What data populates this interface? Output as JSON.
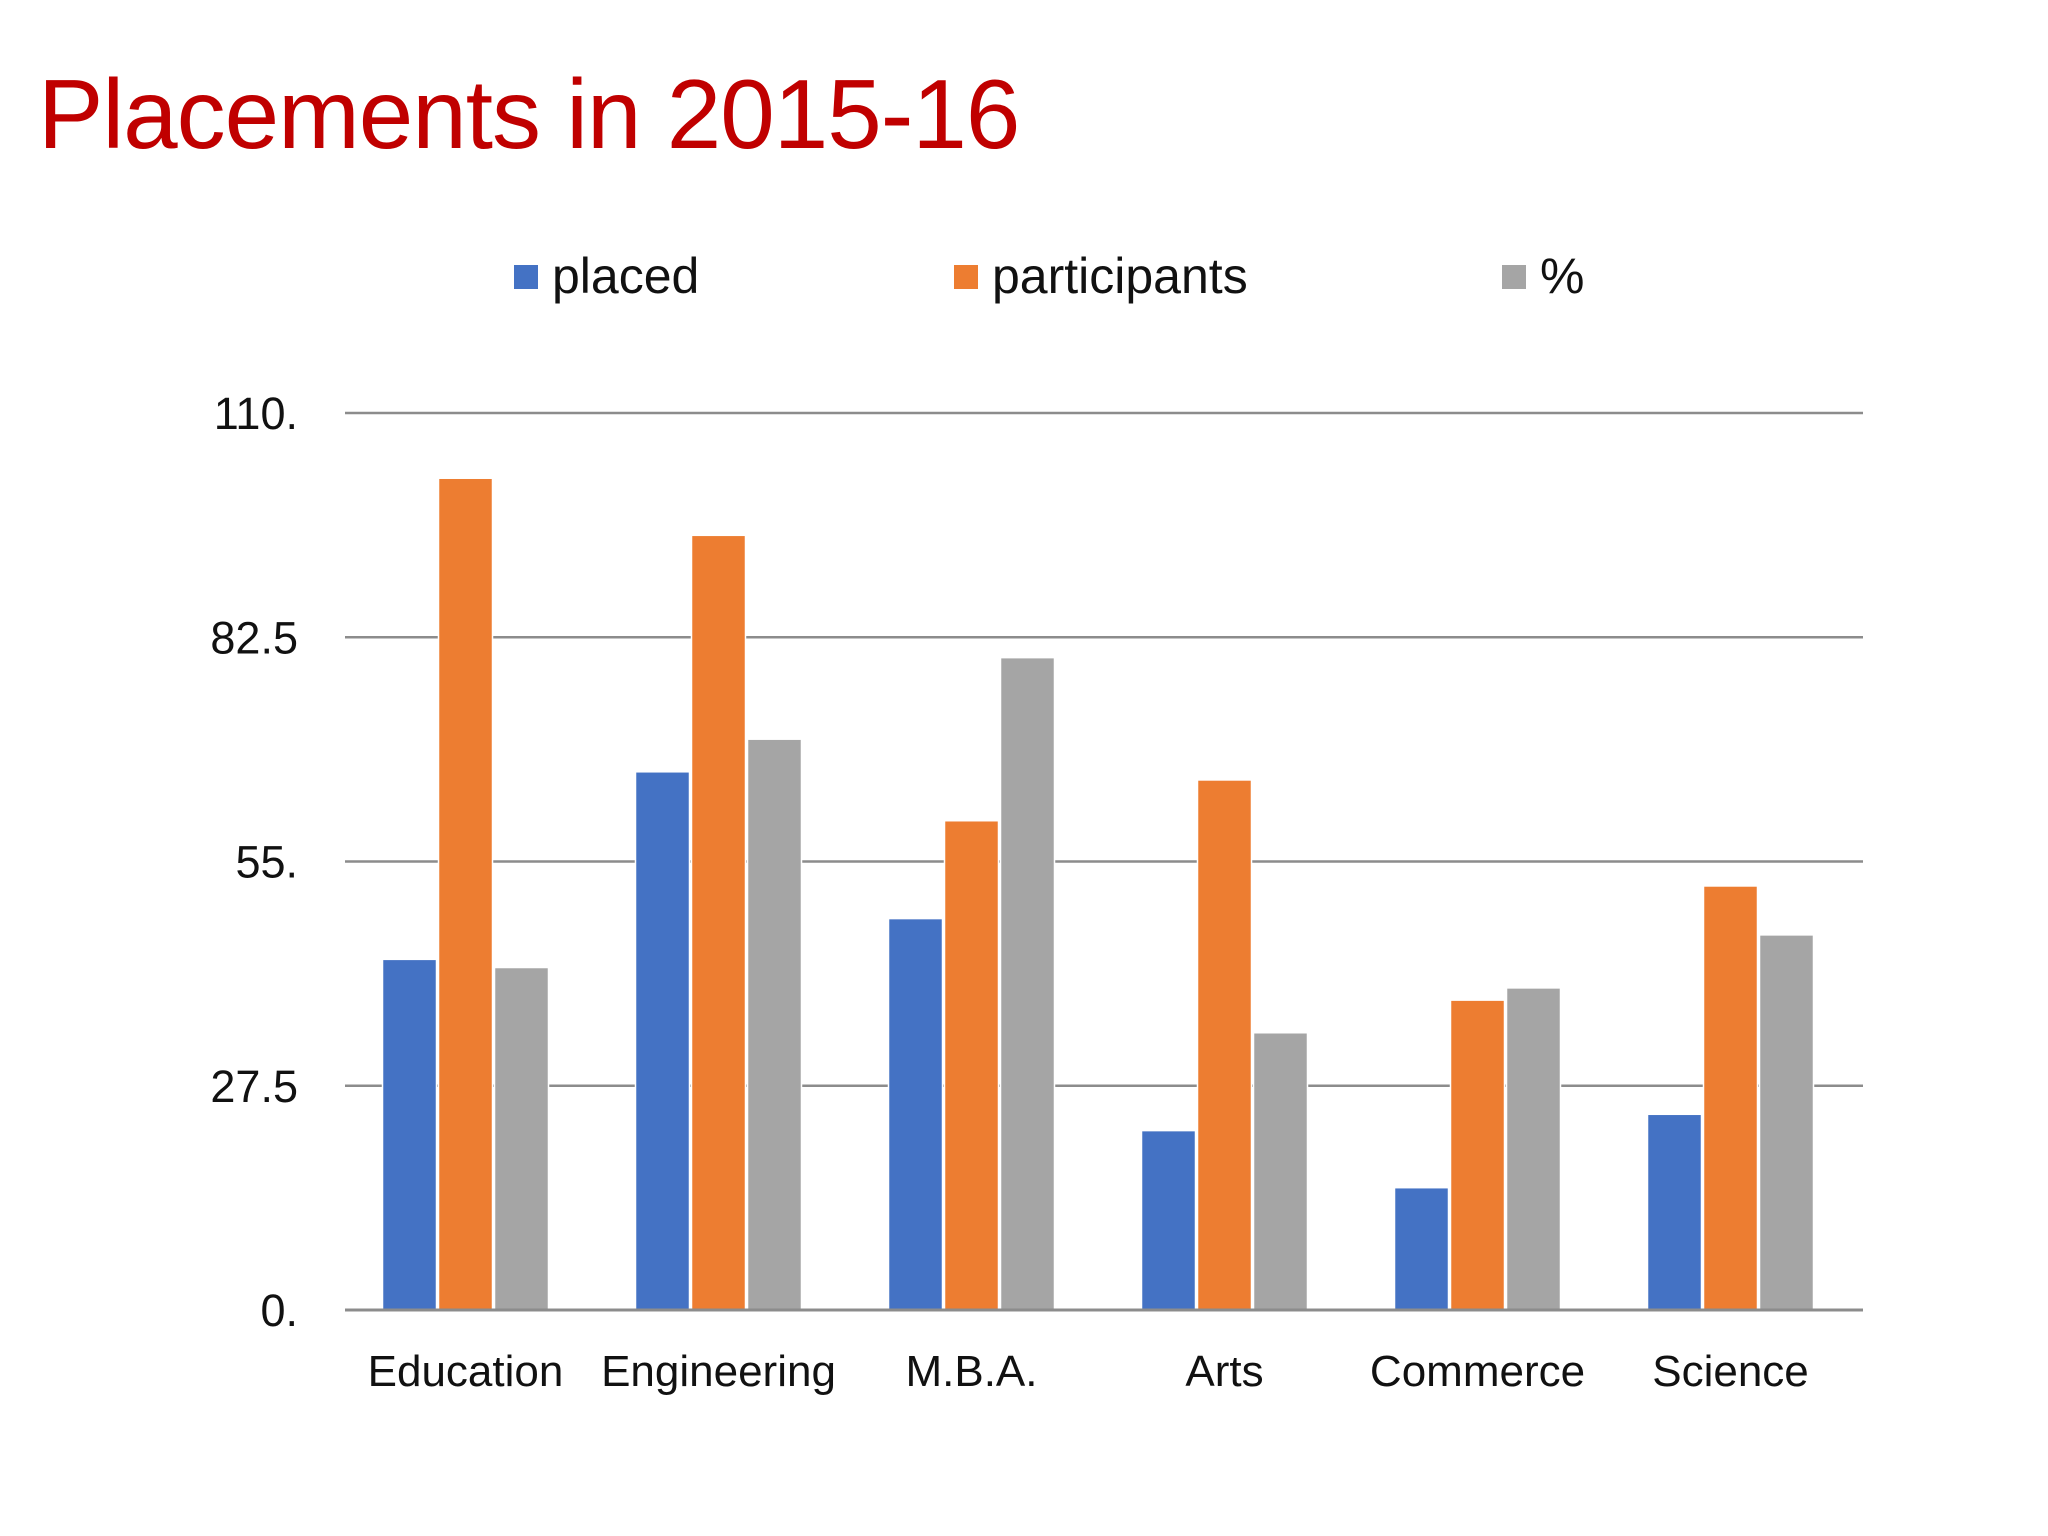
{
  "title": "Placements in 2015-16",
  "chart_data": {
    "type": "bar",
    "title": "",
    "categories": [
      "Education",
      "Engineering",
      "M.B.A.",
      "Arts",
      "Commerce",
      "Science"
    ],
    "series": [
      {
        "name": "placed",
        "color": "#4472c4",
        "values": [
          43,
          66,
          48,
          22,
          15,
          24
        ]
      },
      {
        "name": "participants",
        "color": "#ed7d31",
        "values": [
          102,
          95,
          60,
          65,
          38,
          52
        ]
      },
      {
        "name": "%",
        "color": "#a5a5a5",
        "values": [
          42,
          70,
          80,
          34,
          39.5,
          46
        ]
      }
    ],
    "ylim": [
      0,
      110
    ],
    "yticks": [
      0,
      27.5,
      55,
      82.5,
      110
    ],
    "ytick_labels": [
      "0.",
      "27.5",
      "55.",
      "82.5",
      "110."
    ],
    "grid": true,
    "legend_position": "top"
  }
}
